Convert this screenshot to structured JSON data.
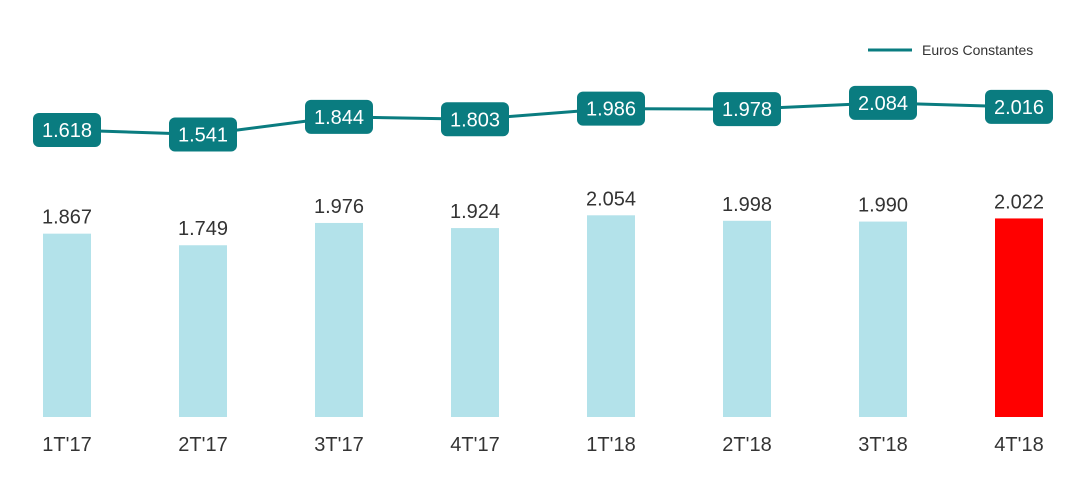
{
  "chart_data": {
    "type": "bar",
    "title": "",
    "xlabel": "",
    "ylabel": "",
    "categories": [
      "1T'17",
      "2T'17",
      "3T'17",
      "4T'17",
      "1T'18",
      "2T'18",
      "3T'18",
      "4T'18"
    ],
    "bar_values": [
      1867,
      1749,
      1976,
      1924,
      2054,
      1998,
      1990,
      2022
    ],
    "bar_labels": [
      "1.867",
      "1.749",
      "1.976",
      "1.924",
      "2.054",
      "1.998",
      "1.990",
      "2.022"
    ],
    "series": [
      {
        "type": "line",
        "name": "Euros Constantes",
        "values": [
          1618,
          1541,
          1844,
          1803,
          1986,
          1978,
          2084,
          2016
        ],
        "labels": [
          "1.618",
          "1.541",
          "1.844",
          "1.803",
          "1.986",
          "1.978",
          "2.084",
          "2.016"
        ]
      }
    ],
    "legend": {
      "position": "top-right",
      "entries": [
        "Euros Constantes"
      ]
    },
    "grid": false,
    "colors": {
      "bar": "#b3e2ea",
      "bar_highlight": "#ff0000",
      "line": "#0a7c80",
      "label_box": "#0a7c80",
      "text": "#333333"
    },
    "highlight_index": 7
  }
}
